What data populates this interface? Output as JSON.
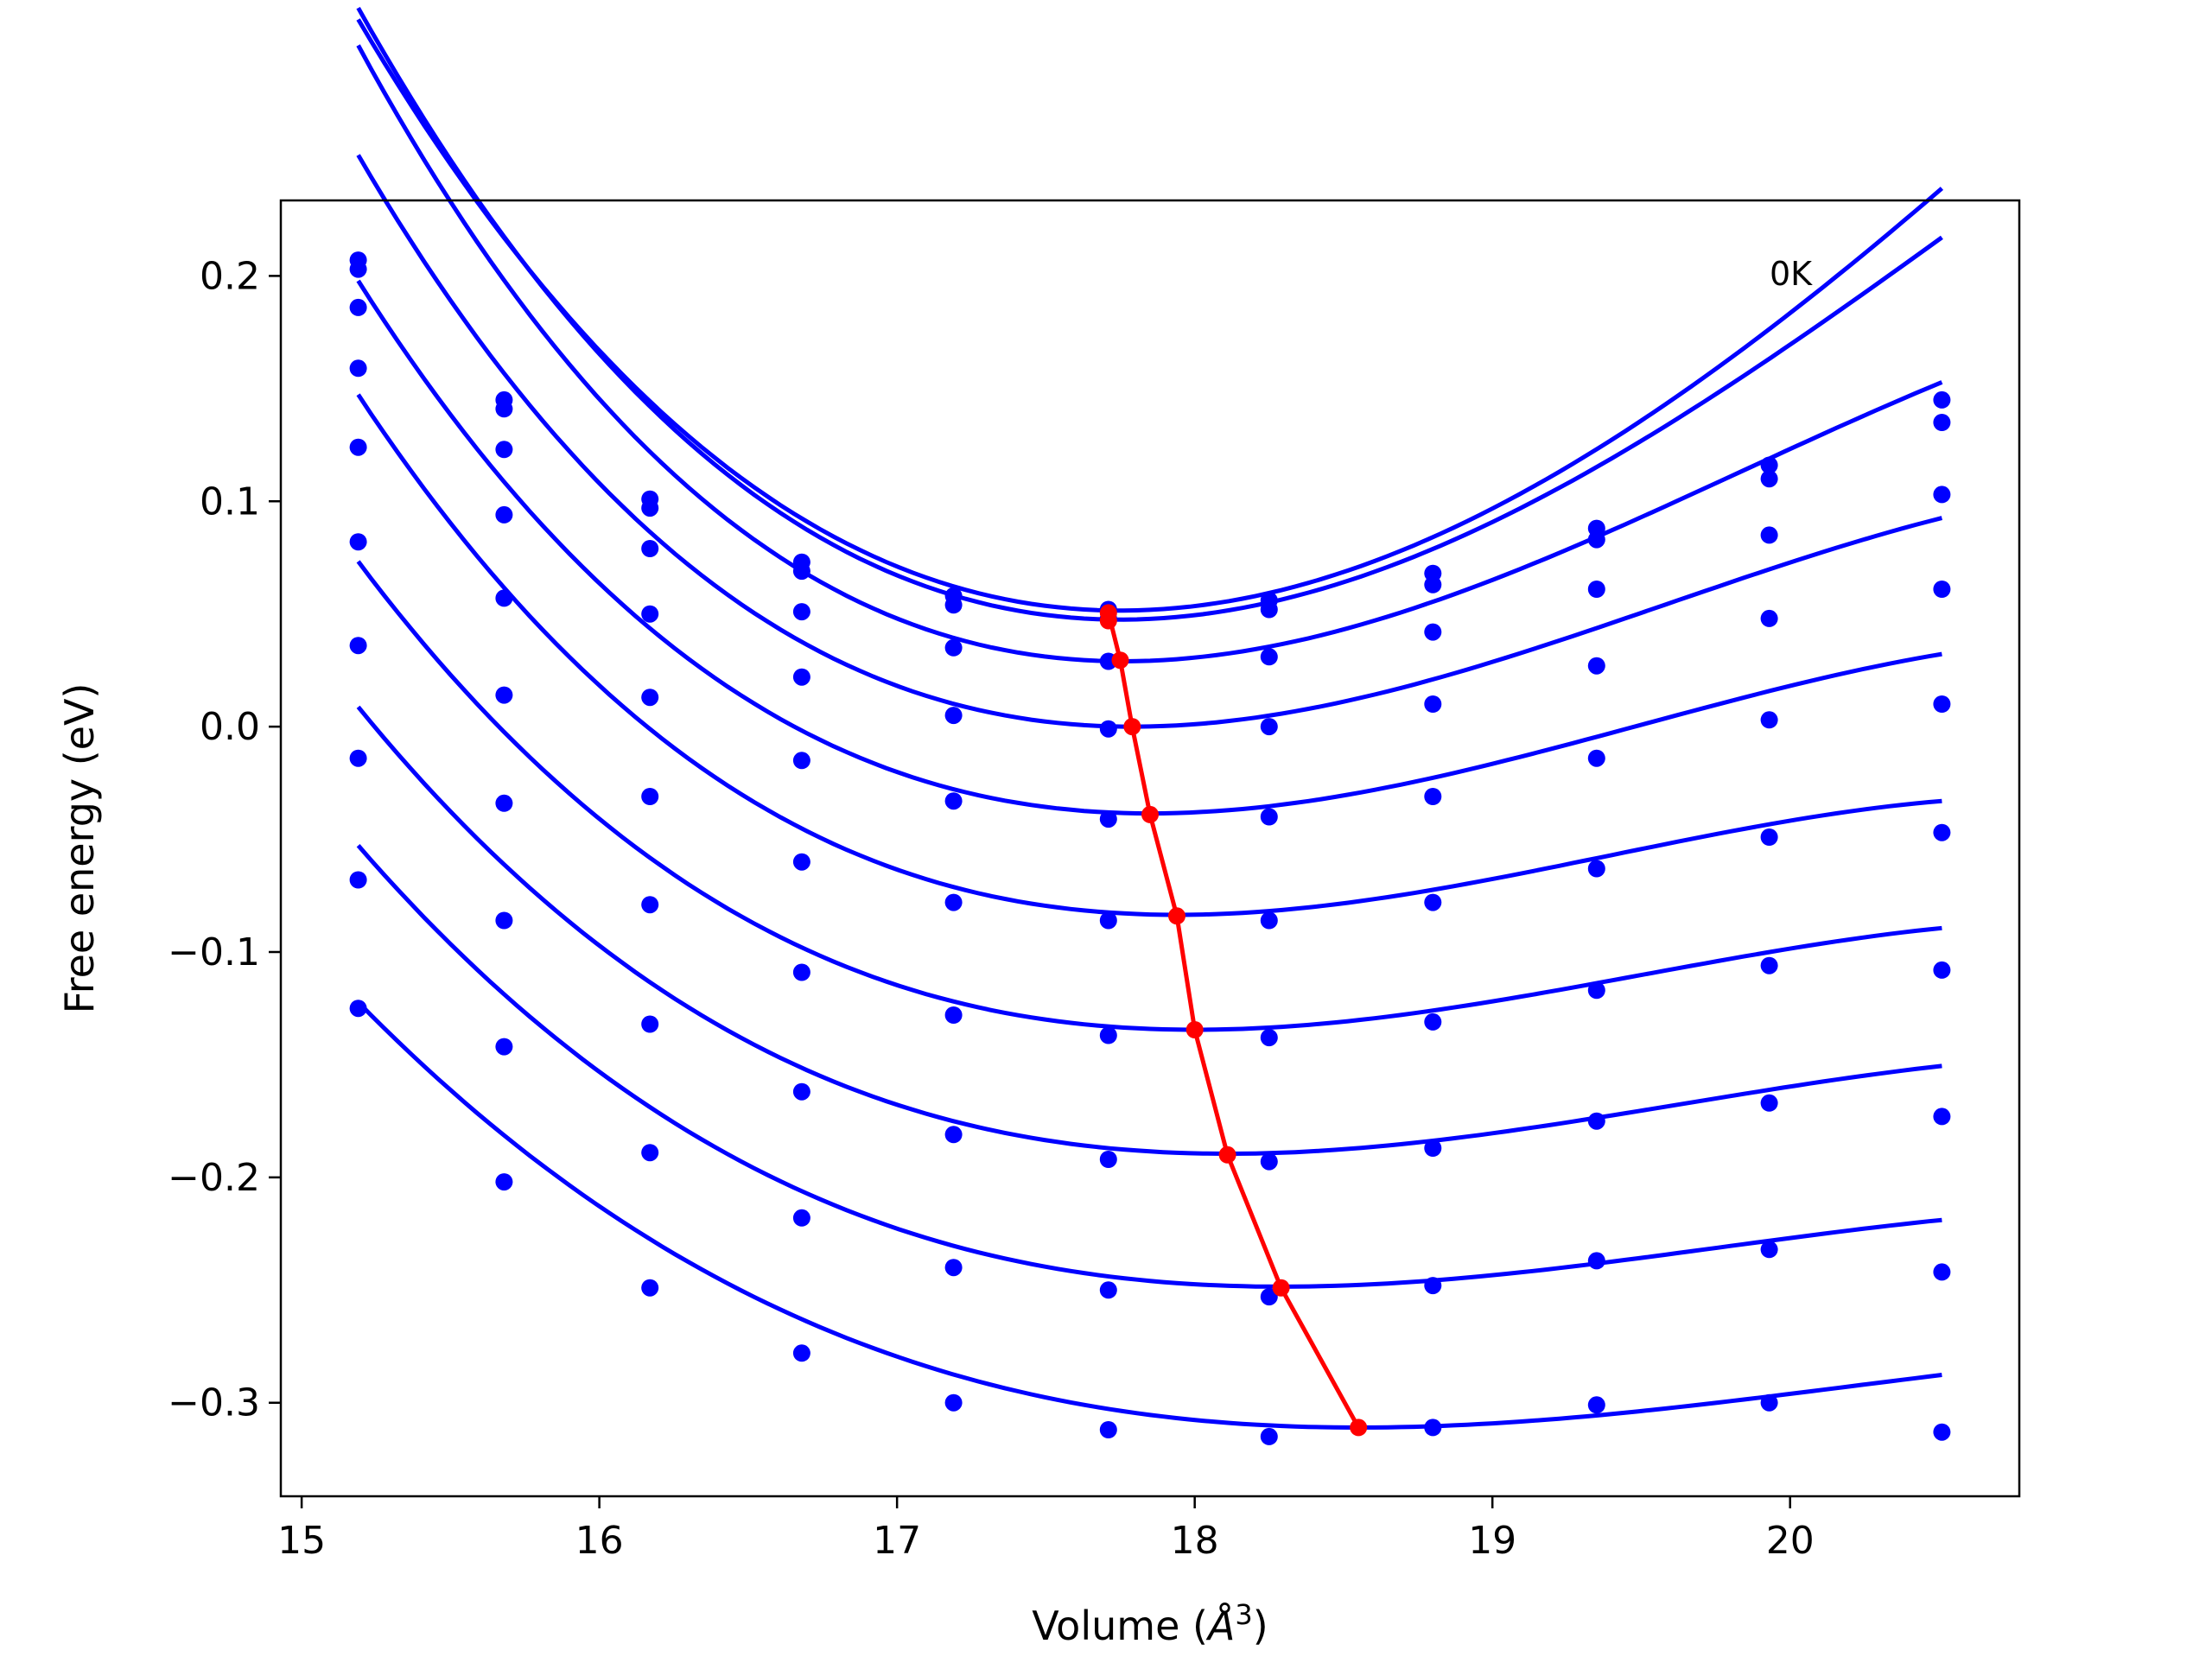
{
  "chart_data": {
    "type": "scatter",
    "title": "",
    "xlabel": "Volume (",
    "xlabel_unit": "Å",
    "xlabel_exp": "3",
    "xlabel_close": ")",
    "ylabel": "Free energy (eV)",
    "xlim": [
      14.93,
      20.77
    ],
    "ylim": [
      -0.3415,
      0.2335
    ],
    "xticks": [
      15,
      16,
      17,
      18,
      19,
      20
    ],
    "xtick_labels": [
      "15",
      "16",
      "17",
      "18",
      "19",
      "20"
    ],
    "yticks": [
      -0.3,
      -0.2,
      -0.1,
      0.0,
      0.1,
      0.2
    ],
    "ytick_labels": [
      "−0.3",
      "−0.2",
      "−0.1",
      "0.0",
      "0.1",
      "0.2"
    ],
    "annotation": "0K",
    "grid": false,
    "legend": "none",
    "colors": {
      "points": "#0000ff",
      "fit": "#0000ff",
      "minima": "#ff0000"
    },
    "x": [
      15.19,
      15.68,
      16.17,
      16.68,
      17.19,
      17.71,
      18.25,
      18.8,
      19.35,
      19.93,
      20.51
    ],
    "series": [
      {
        "values": [
          0.207,
          0.145,
          0.101,
          0.073,
          0.058,
          0.052,
          0.056,
          0.068,
          0.088,
          0.116,
          0.145
        ],
        "fit": {
          "vmin": 17.75,
          "fmin": 0.0515,
          "a": 0.0326,
          "b": -0.0029
        }
      },
      {
        "values": [
          0.203,
          0.141,
          0.097,
          0.069,
          0.054,
          0.048,
          0.052,
          0.063,
          0.083,
          0.11,
          0.135
        ],
        "fit": {
          "vmin": 17.75,
          "fmin": 0.0475,
          "a": 0.0322,
          "b": -0.0036
        }
      },
      {
        "values": [
          0.186,
          0.123,
          0.079,
          0.051,
          0.035,
          0.029,
          0.031,
          0.042,
          0.061,
          0.085,
          0.103
        ],
        "fit": {
          "vmin": 17.76,
          "fmin": 0.029,
          "a": 0.0293,
          "b": -0.0047
        }
      },
      {
        "values": [
          0.159,
          0.094,
          0.05,
          0.022,
          0.005,
          -0.001,
          0.0,
          0.01,
          0.027,
          0.048,
          0.061
        ],
        "fit": {
          "vmin": 17.79,
          "fmin": 0.0,
          "a": 0.0253,
          "b": -0.0047
        }
      },
      {
        "values": [
          0.124,
          0.057,
          0.013,
          -0.015,
          -0.033,
          -0.041,
          -0.04,
          -0.031,
          -0.014,
          0.003,
          0.01
        ],
        "fit": {
          "vmin": 17.85,
          "fmin": -0.0385,
          "a": 0.0217,
          "b": -0.0044
        }
      },
      {
        "values": [
          0.082,
          0.014,
          -0.031,
          -0.06,
          -0.078,
          -0.086,
          -0.086,
          -0.078,
          -0.063,
          -0.049,
          -0.047
        ],
        "fit": {
          "vmin": 17.94,
          "fmin": -0.0835,
          "a": 0.0187,
          "b": -0.0043
        }
      },
      {
        "values": [
          0.036,
          -0.034,
          -0.079,
          -0.109,
          -0.128,
          -0.137,
          -0.138,
          -0.131,
          -0.117,
          -0.106,
          -0.108
        ],
        "fit": {
          "vmin": 18.0,
          "fmin": -0.1345,
          "a": 0.0162,
          "b": -0.0036
        }
      },
      {
        "values": [
          -0.014,
          -0.086,
          -0.132,
          -0.162,
          -0.181,
          -0.192,
          -0.193,
          -0.187,
          -0.175,
          -0.167,
          -0.173
        ],
        "fit": {
          "vmin": 18.11,
          "fmin": -0.1895,
          "a": 0.0142,
          "b": -0.0031
        }
      },
      {
        "values": [
          -0.068,
          -0.142,
          -0.189,
          -0.218,
          -0.24,
          -0.25,
          -0.253,
          -0.248,
          -0.237,
          -0.232,
          -0.242
        ],
        "fit": {
          "vmin": 18.29,
          "fmin": -0.2485,
          "a": 0.012,
          "b": -0.0027
        }
      },
      {
        "values": [
          -0.125,
          -0.202,
          -0.249,
          -0.278,
          -0.3,
          -0.312,
          -0.315,
          -0.311,
          -0.301,
          -0.3,
          -0.313
        ],
        "fit": {
          "vmin": 18.55,
          "fmin": -0.311,
          "a": 0.01,
          "b": -0.002
        }
      }
    ],
    "minima": {
      "x": [
        17.71,
        17.75,
        17.79,
        17.85,
        17.94,
        18.0,
        18.11,
        18.29,
        18.55
      ],
      "y": [
        0.0505,
        0.0295,
        0.0,
        -0.039,
        -0.084,
        -0.1345,
        -0.19,
        -0.249,
        -0.311
      ]
    },
    "minima_extra": {
      "x": 17.71,
      "y": 0.047
    }
  }
}
